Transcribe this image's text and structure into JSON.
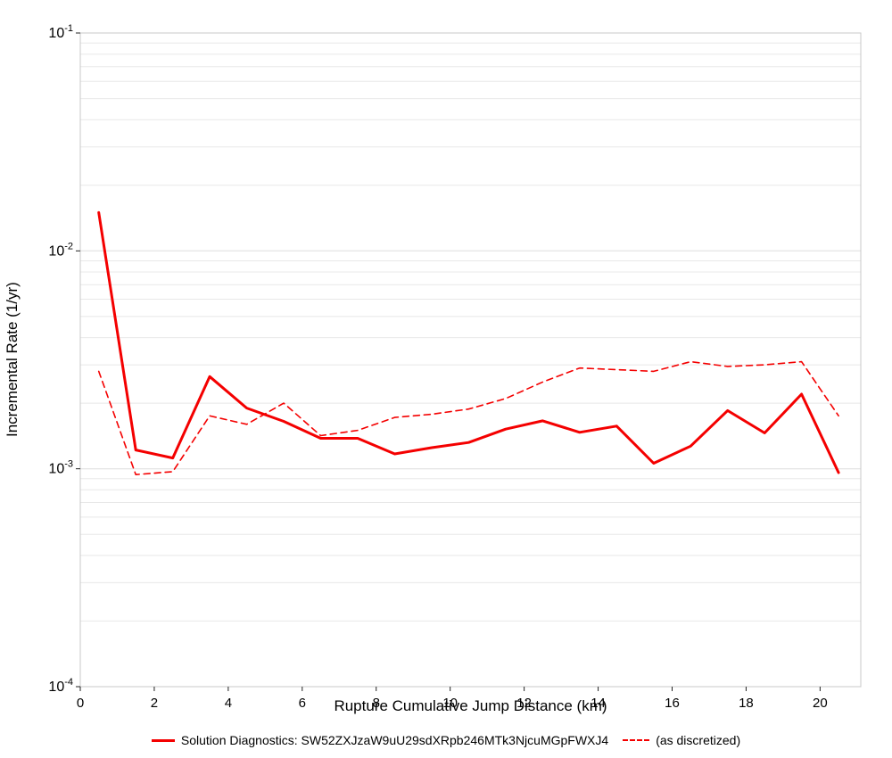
{
  "chart_data": {
    "type": "line",
    "title": "",
    "xlabel": "Rupture Cumulative Jump Distance (km)",
    "ylabel": "Incremental Rate (1/yr)",
    "xlim": [
      0,
      21.1
    ],
    "ylim_exp": [
      -4,
      -1
    ],
    "x_ticks": [
      0,
      2,
      4,
      6,
      8,
      10,
      12,
      14,
      16,
      18,
      20
    ],
    "y_tick_exponents": [
      -4,
      -3,
      -2,
      -1
    ],
    "y_tick_base": "10",
    "grid": "horizontal log minor gridlines, no vertical gridlines",
    "legend_position": "bottom-center",
    "x": [
      0.5,
      1.5,
      2.5,
      3.5,
      4.5,
      5.5,
      6.5,
      7.5,
      8.5,
      9.5,
      10.5,
      11.5,
      12.5,
      13.5,
      14.5,
      15.5,
      16.5,
      17.5,
      18.5,
      19.5,
      20.5
    ],
    "series": [
      {
        "name": "Solution Diagnostics: SW52ZXJzaW9uU29sdXRpb246MTk3NjcuMGpFWXJ4",
        "line_style": "solid",
        "color": "#f40000",
        "values": [
          0.015,
          0.00122,
          0.00112,
          0.00265,
          0.0019,
          0.00165,
          0.00138,
          0.00138,
          0.00117,
          0.00125,
          0.00132,
          0.00152,
          0.00166,
          0.00147,
          0.00157,
          0.00106,
          0.00127,
          0.00185,
          0.00146,
          0.0022,
          0.00096
        ]
      },
      {
        "name": "(as discretized)",
        "line_style": "dashed",
        "color": "#f40000",
        "values": [
          0.0028,
          0.00094,
          0.00097,
          0.00175,
          0.0016,
          0.002,
          0.00142,
          0.0015,
          0.00172,
          0.00178,
          0.00188,
          0.0021,
          0.0025,
          0.0029,
          0.00285,
          0.0028,
          0.0031,
          0.00295,
          0.003,
          0.0031,
          0.00175
        ]
      }
    ],
    "colors": {
      "grid_minor": "#e8e8e8",
      "grid_major": "#dddddd",
      "plot_border": "#c8c8c8",
      "tick_mark": "#222222",
      "axis_text": "#000000",
      "background": "#ffffff"
    }
  }
}
